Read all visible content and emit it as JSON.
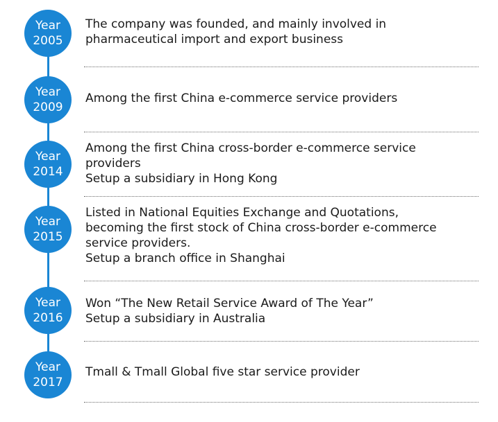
{
  "milestones": [
    {
      "year_label": "Year",
      "year": "2005",
      "lines": [
        "The company was founded, and mainly involved in",
        "pharmaceutical import and export business"
      ]
    },
    {
      "year_label": "Year",
      "year": "2009",
      "lines": [
        "Among the first China e-commerce service providers"
      ]
    },
    {
      "year_label": "Year",
      "year": "2014",
      "lines": [
        "Among the first China cross-border e-commerce service",
        "providers",
        "Setup a subsidiary in Hong Kong"
      ]
    },
    {
      "year_label": "Year",
      "year": "2015",
      "lines": [
        "Listed in National Equities Exchange and Quotations,",
        "becoming the first stock of China cross-border e-commerce",
        "service providers.",
        "Setup a branch office in Shanghai"
      ]
    },
    {
      "year_label": "Year",
      "year": "2016",
      "lines": [
        "Won “The New Retail Service Award of The Year”",
        "Setup a subsidiary in Australia"
      ]
    },
    {
      "year_label": "Year",
      "year": "2017",
      "lines": [
        "Tmall & Tmall Global five star service provider"
      ]
    }
  ],
  "colors": {
    "accent": "#1a86d4",
    "text": "#1a1a1a",
    "separator": "#6a6a6a"
  }
}
